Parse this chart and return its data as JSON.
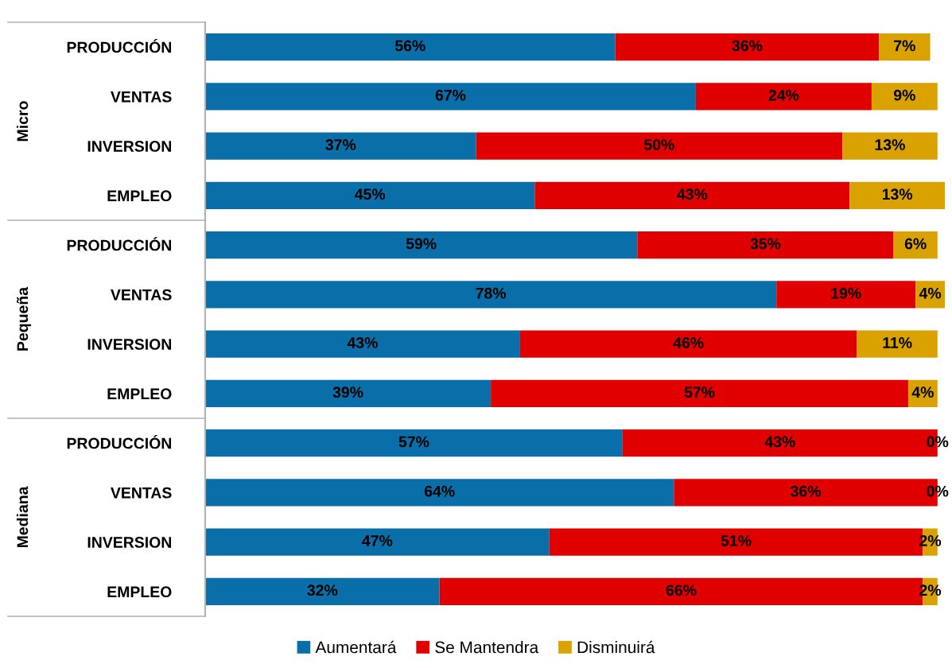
{
  "chart_data": {
    "type": "bar",
    "orientation": "horizontal",
    "stacked": true,
    "tick_labels": "y",
    "grid": false,
    "legend": "bottom",
    "categories": [
      "PRODUCCIÓN",
      "VENTAS",
      "INVERSION",
      "EMPLEO",
      "PRODUCCIÓN",
      "VENTAS",
      "INVERSION",
      "EMPLEO",
      "PRODUCCIÓN",
      "VENTAS",
      "INVERSION",
      "EMPLEO"
    ],
    "annotations": [
      "Micro",
      "Pequeña",
      "Mediana"
    ],
    "series": [
      {
        "name": "Aumentará",
        "color": "#0a6ea8",
        "values": [
          56,
          67,
          37,
          45,
          59,
          78,
          43,
          39,
          57,
          64,
          47,
          32
        ],
        "value_labels": [
          "56%",
          "67%",
          "37%",
          "45%",
          "59%",
          "78%",
          "43%",
          "39%",
          "57%",
          "64%",
          "47%",
          "32%"
        ]
      },
      {
        "name": "Se Mantendra",
        "color": "#e00000",
        "values": [
          36,
          24,
          50,
          43,
          35,
          19,
          46,
          57,
          43,
          36,
          51,
          66
        ],
        "value_labels": [
          "36%",
          "24%",
          "50%",
          "43%",
          "35%",
          "19%",
          "46%",
          "57%",
          "43%",
          "36%",
          "51%",
          "66%"
        ]
      },
      {
        "name": "Disminuirá",
        "color": "#d9a200",
        "values": [
          7,
          9,
          13,
          13,
          6,
          4,
          11,
          4,
          0,
          0,
          2,
          2
        ],
        "value_labels": [
          "7%",
          "9%",
          "13%",
          "13%",
          "6%",
          "4%",
          "11%",
          "4%",
          "0%",
          "0%",
          "2%",
          "2%"
        ]
      }
    ]
  }
}
